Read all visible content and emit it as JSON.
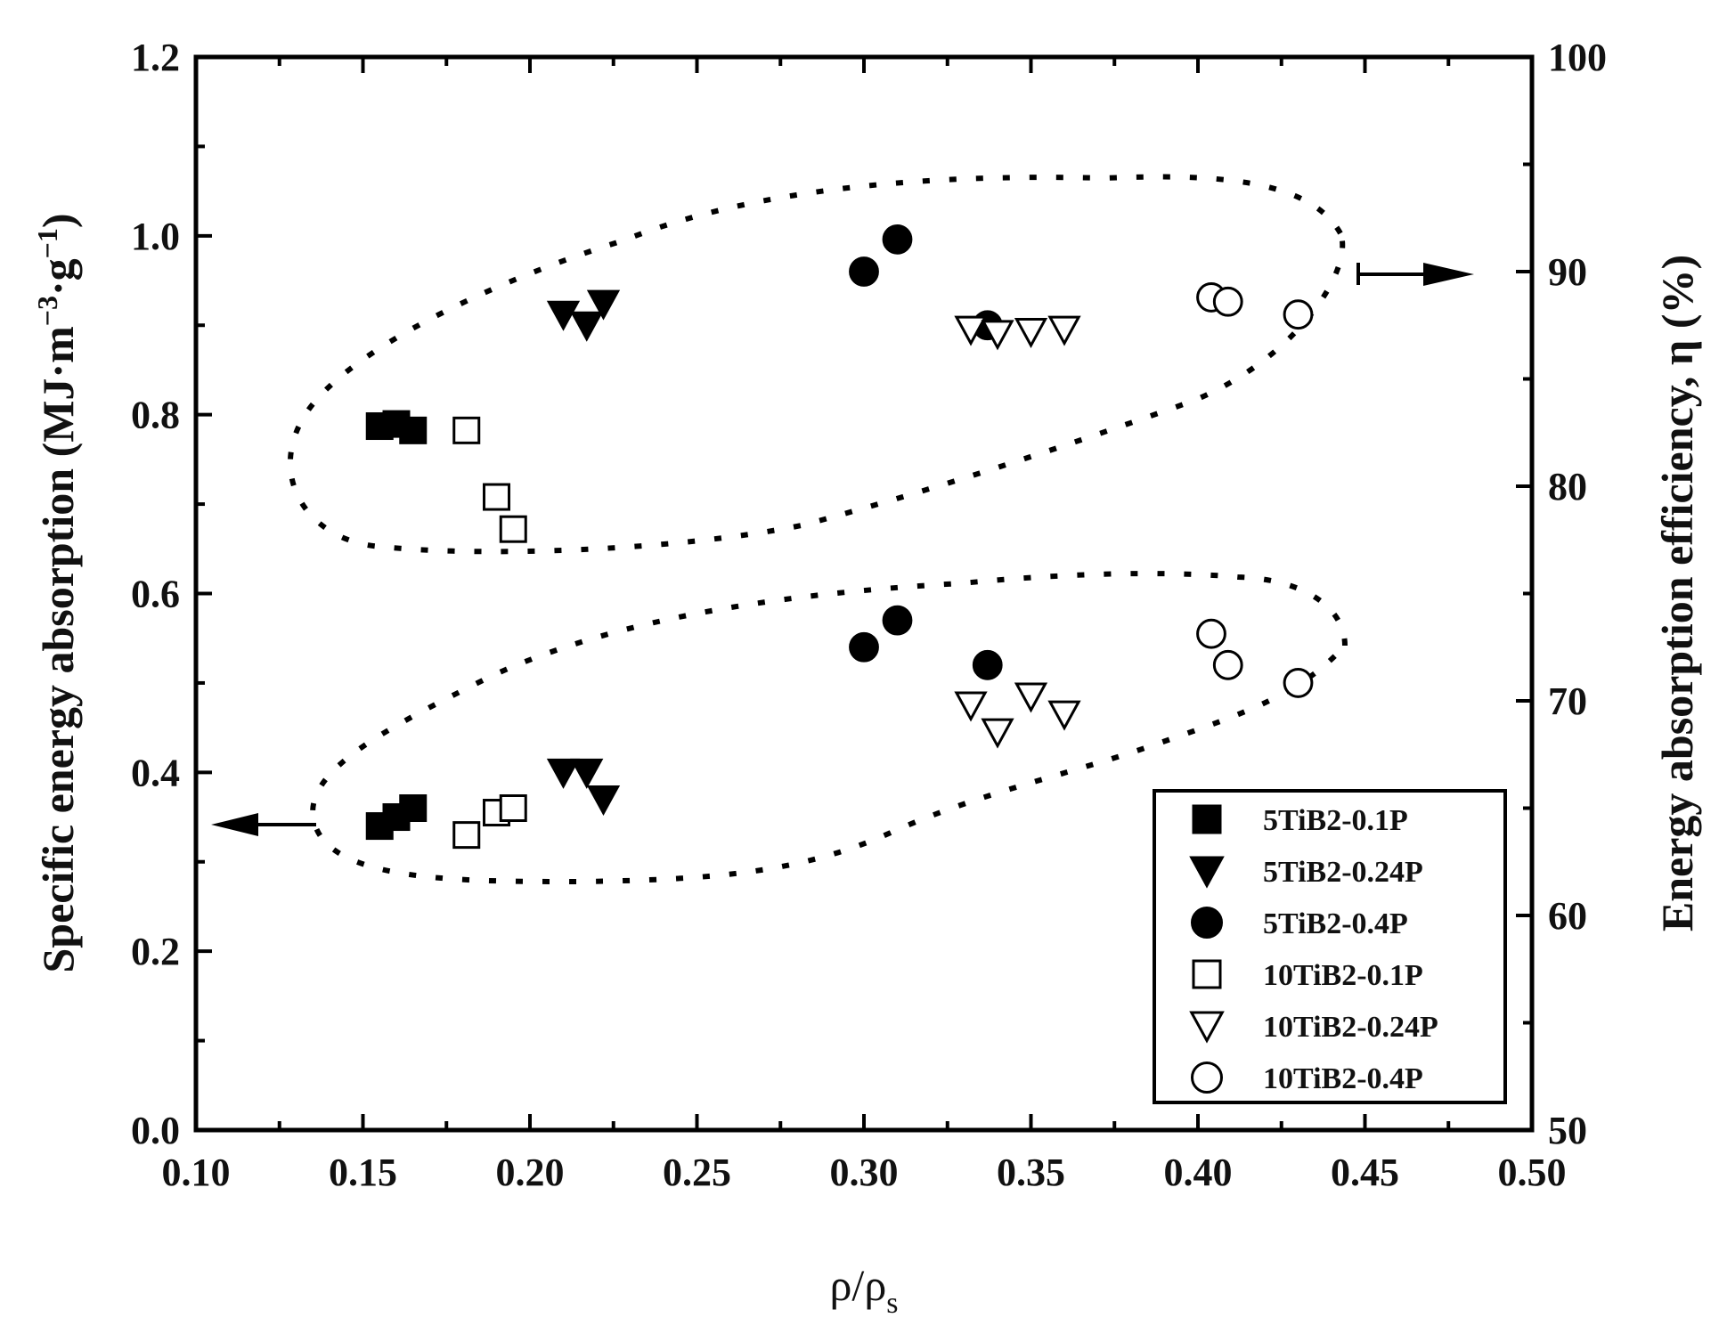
{
  "chart_data": {
    "type": "scatter",
    "xlabel_main": "ρ/ρ",
    "xlabel_sub": "s",
    "ylabel_left_main": "Specific energy absorption (MJ·m",
    "ylabel_left_sup1": "−3",
    "ylabel_left_mid": "·g",
    "ylabel_left_sup2": "−1",
    "ylabel_left_end": ")",
    "ylabel_right": "Energy absorption efficiency, η (%)",
    "xlim": [
      0.1,
      0.5
    ],
    "ylim_left": [
      0.0,
      1.2
    ],
    "ylim_right": [
      50,
      100
    ],
    "x_ticks": [
      "0.10",
      "0.15",
      "0.20",
      "0.25",
      "0.30",
      "0.35",
      "0.40",
      "0.45",
      "0.50"
    ],
    "y_left_ticks": [
      "0.0",
      "0.2",
      "0.4",
      "0.6",
      "0.8",
      "1.0",
      "1.2"
    ],
    "y_right_ticks": [
      "50",
      "60",
      "70",
      "80",
      "90",
      "100"
    ],
    "legend_position": "bottom-right",
    "series": [
      {
        "name": "5TiB2-0.1P",
        "marker": "square",
        "filled": true,
        "sea": [
          [
            0.155,
            0.34
          ],
          [
            0.16,
            0.35
          ],
          [
            0.165,
            0.36
          ]
        ],
        "efficiency": [
          [
            0.155,
            82.8
          ],
          [
            0.16,
            82.9
          ],
          [
            0.165,
            82.6
          ]
        ]
      },
      {
        "name": "5TiB2-0.24P",
        "marker": "triangle-down",
        "filled": true,
        "sea": [
          [
            0.21,
            0.4
          ],
          [
            0.217,
            0.4
          ],
          [
            0.222,
            0.37
          ]
        ],
        "efficiency": [
          [
            0.21,
            88.0
          ],
          [
            0.217,
            87.5
          ],
          [
            0.222,
            88.5
          ]
        ]
      },
      {
        "name": "5TiB2-0.4P",
        "marker": "circle",
        "filled": true,
        "sea": [
          [
            0.3,
            0.54
          ],
          [
            0.31,
            0.57
          ],
          [
            0.337,
            0.52
          ]
        ],
        "efficiency": [
          [
            0.3,
            90.0
          ],
          [
            0.31,
            91.5
          ],
          [
            0.337,
            87.5
          ]
        ]
      },
      {
        "name": "10TiB2-0.1P",
        "marker": "square",
        "filled": false,
        "sea": [
          [
            0.181,
            0.33
          ],
          [
            0.19,
            0.355
          ],
          [
            0.195,
            0.36
          ]
        ],
        "efficiency": [
          [
            0.181,
            82.6
          ],
          [
            0.19,
            79.5
          ],
          [
            0.195,
            78.0
          ]
        ]
      },
      {
        "name": "10TiB2-0.24P",
        "marker": "triangle-down",
        "filled": false,
        "sea": [
          [
            0.332,
            0.475
          ],
          [
            0.34,
            0.445
          ],
          [
            0.35,
            0.485
          ],
          [
            0.36,
            0.465
          ]
        ],
        "efficiency": [
          [
            0.332,
            87.3
          ],
          [
            0.34,
            87.1
          ],
          [
            0.35,
            87.2
          ],
          [
            0.36,
            87.3
          ]
        ]
      },
      {
        "name": "10TiB2-0.4P",
        "marker": "circle",
        "filled": false,
        "sea": [
          [
            0.404,
            0.555
          ],
          [
            0.409,
            0.52
          ],
          [
            0.43,
            0.5
          ]
        ],
        "efficiency": [
          [
            0.404,
            88.8
          ],
          [
            0.409,
            88.6
          ],
          [
            0.43,
            88.0
          ]
        ]
      }
    ]
  }
}
